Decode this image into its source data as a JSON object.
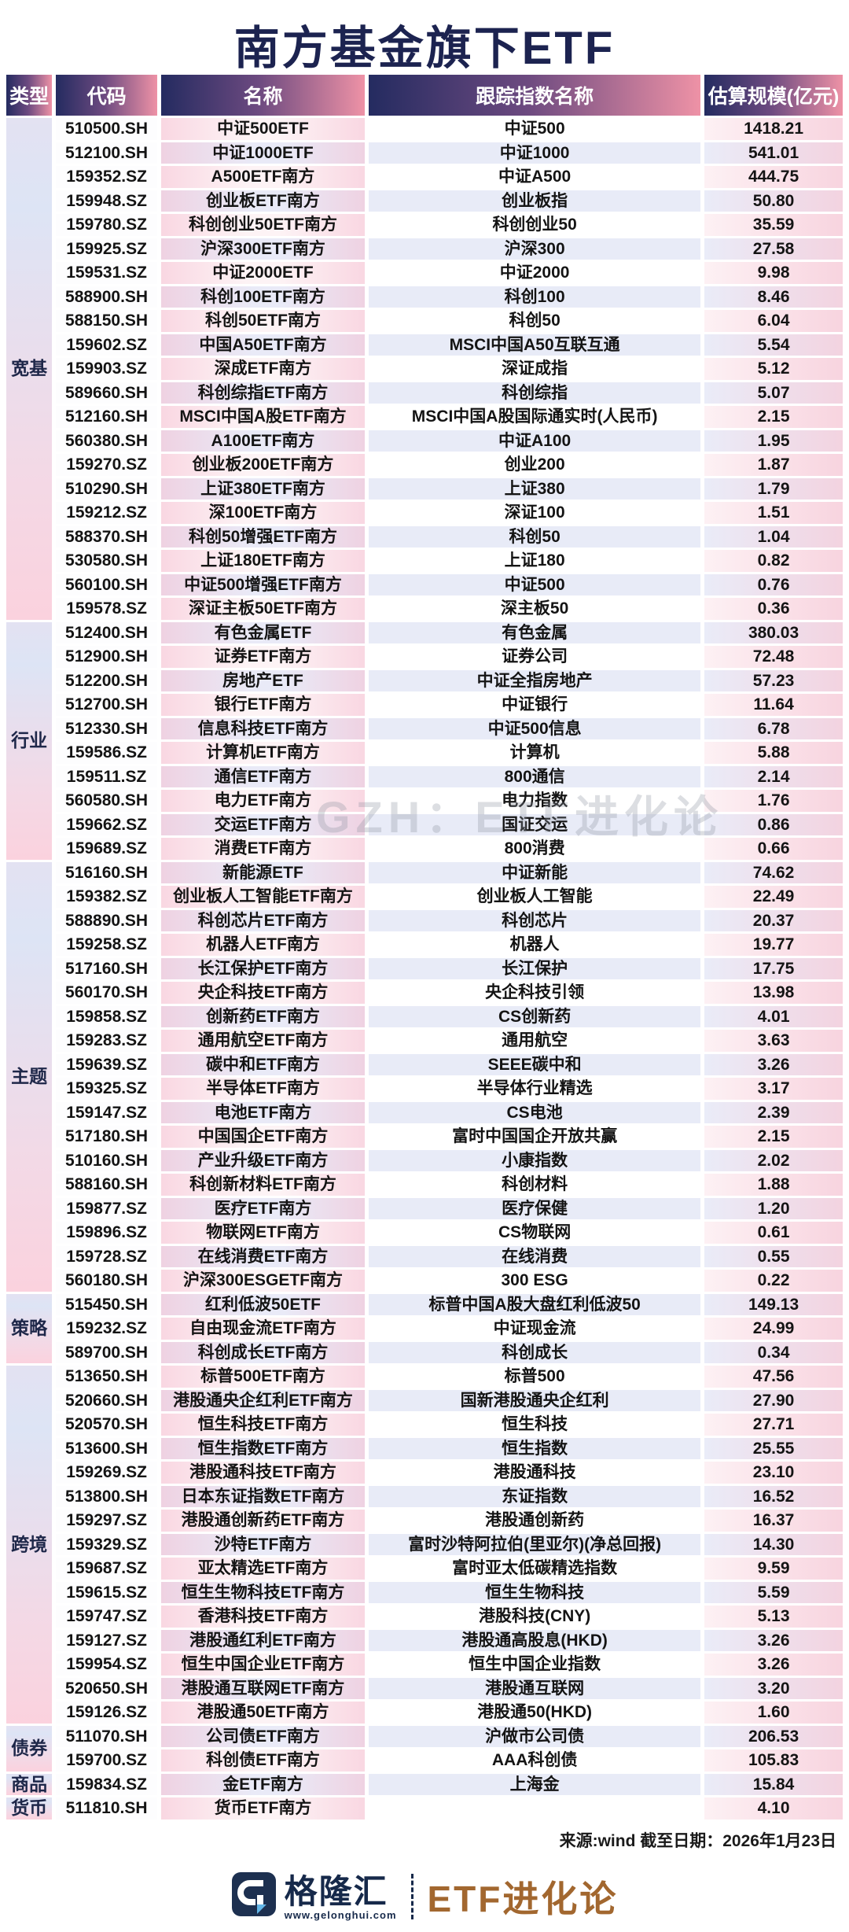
{
  "title": "南方基金旗下ETF",
  "watermark": "GZH：ETF进化论",
  "colors": {
    "title_navy": "#1c2350",
    "header_gradient_left": "#242b60",
    "header_gradient_right": "#ee92a6",
    "row_pink": "#f9d7e2",
    "row_lavender": "#e8ebf7",
    "brand_brown": "#a2672f",
    "logo_navy": "#16294a",
    "logo_blue": "#63b6e8"
  },
  "table": {
    "headers": [
      "类型",
      "代码",
      "名称",
      "跟踪指数名称",
      "估算规模(亿元)"
    ],
    "sections": [
      {
        "type": "宽基",
        "rows": [
          [
            "510500.SH",
            "中证500ETF",
            "中证500",
            "1418.21"
          ],
          [
            "512100.SH",
            "中证1000ETF",
            "中证1000",
            "541.01"
          ],
          [
            "159352.SZ",
            "A500ETF南方",
            "中证A500",
            "444.75"
          ],
          [
            "159948.SZ",
            "创业板ETF南方",
            "创业板指",
            "50.80"
          ],
          [
            "159780.SZ",
            "科创创业50ETF南方",
            "科创创业50",
            "35.59"
          ],
          [
            "159925.SZ",
            "沪深300ETF南方",
            "沪深300",
            "27.58"
          ],
          [
            "159531.SZ",
            "中证2000ETF",
            "中证2000",
            "9.98"
          ],
          [
            "588900.SH",
            "科创100ETF南方",
            "科创100",
            "8.46"
          ],
          [
            "588150.SH",
            "科创50ETF南方",
            "科创50",
            "6.04"
          ],
          [
            "159602.SZ",
            "中国A50ETF南方",
            "MSCI中国A50互联互通",
            "5.54"
          ],
          [
            "159903.SZ",
            "深成ETF南方",
            "深证成指",
            "5.12"
          ],
          [
            "589660.SH",
            "科创综指ETF南方",
            "科创综指",
            "5.07"
          ],
          [
            "512160.SH",
            "MSCI中国A股ETF南方",
            "MSCI中国A股国际通实时(人民币)",
            "2.15"
          ],
          [
            "560380.SH",
            "A100ETF南方",
            "中证A100",
            "1.95"
          ],
          [
            "159270.SZ",
            "创业板200ETF南方",
            "创业200",
            "1.87"
          ],
          [
            "510290.SH",
            "上证380ETF南方",
            "上证380",
            "1.79"
          ],
          [
            "159212.SZ",
            "深100ETF南方",
            "深证100",
            "1.51"
          ],
          [
            "588370.SH",
            "科创50增强ETF南方",
            "科创50",
            "1.04"
          ],
          [
            "530580.SH",
            "上证180ETF南方",
            "上证180",
            "0.82"
          ],
          [
            "560100.SH",
            "中证500增强ETF南方",
            "中证500",
            "0.76"
          ],
          [
            "159578.SZ",
            "深证主板50ETF南方",
            "深主板50",
            "0.36"
          ]
        ]
      },
      {
        "type": "行业",
        "rows": [
          [
            "512400.SH",
            "有色金属ETF",
            "有色金属",
            "380.03"
          ],
          [
            "512900.SH",
            "证券ETF南方",
            "证券公司",
            "72.48"
          ],
          [
            "512200.SH",
            "房地产ETF",
            "中证全指房地产",
            "57.23"
          ],
          [
            "512700.SH",
            "银行ETF南方",
            "中证银行",
            "11.64"
          ],
          [
            "512330.SH",
            "信息科技ETF南方",
            "中证500信息",
            "6.78"
          ],
          [
            "159586.SZ",
            "计算机ETF南方",
            "计算机",
            "5.88"
          ],
          [
            "159511.SZ",
            "通信ETF南方",
            "800通信",
            "2.14"
          ],
          [
            "560580.SH",
            "电力ETF南方",
            "电力指数",
            "1.76"
          ],
          [
            "159662.SZ",
            "交运ETF南方",
            "国证交运",
            "0.86"
          ],
          [
            "159689.SZ",
            "消费ETF南方",
            "800消费",
            "0.66"
          ]
        ]
      },
      {
        "type": "主题",
        "rows": [
          [
            "516160.SH",
            "新能源ETF",
            "中证新能",
            "74.62"
          ],
          [
            "159382.SZ",
            "创业板人工智能ETF南方",
            "创业板人工智能",
            "22.49"
          ],
          [
            "588890.SH",
            "科创芯片ETF南方",
            "科创芯片",
            "20.37"
          ],
          [
            "159258.SZ",
            "机器人ETF南方",
            "机器人",
            "19.77"
          ],
          [
            "517160.SH",
            "长江保护ETF南方",
            "长江保护",
            "17.75"
          ],
          [
            "560170.SH",
            "央企科技ETF南方",
            "央企科技引领",
            "13.98"
          ],
          [
            "159858.SZ",
            "创新药ETF南方",
            "CS创新药",
            "4.01"
          ],
          [
            "159283.SZ",
            "通用航空ETF南方",
            "通用航空",
            "3.63"
          ],
          [
            "159639.SZ",
            "碳中和ETF南方",
            "SEEE碳中和",
            "3.26"
          ],
          [
            "159325.SZ",
            "半导体ETF南方",
            "半导体行业精选",
            "3.17"
          ],
          [
            "159147.SZ",
            "电池ETF南方",
            "CS电池",
            "2.39"
          ],
          [
            "517180.SH",
            "中国国企ETF南方",
            "富时中国国企开放共赢",
            "2.15"
          ],
          [
            "510160.SH",
            "产业升级ETF南方",
            "小康指数",
            "2.02"
          ],
          [
            "588160.SH",
            "科创新材料ETF南方",
            "科创材料",
            "1.88"
          ],
          [
            "159877.SZ",
            "医疗ETF南方",
            "医疗保健",
            "1.20"
          ],
          [
            "159896.SZ",
            "物联网ETF南方",
            "CS物联网",
            "0.61"
          ],
          [
            "159728.SZ",
            "在线消费ETF南方",
            "在线消费",
            "0.55"
          ],
          [
            "560180.SH",
            "沪深300ESGETF南方",
            "300 ESG",
            "0.22"
          ]
        ]
      },
      {
        "type": "策略",
        "rows": [
          [
            "515450.SH",
            "红利低波50ETF",
            "标普中国A股大盘红利低波50",
            "149.13"
          ],
          [
            "159232.SZ",
            "自由现金流ETF南方",
            "中证现金流",
            "24.99"
          ],
          [
            "589700.SH",
            "科创成长ETF南方",
            "科创成长",
            "0.34"
          ]
        ]
      },
      {
        "type": "跨境",
        "rows": [
          [
            "513650.SH",
            "标普500ETF南方",
            "标普500",
            "47.56"
          ],
          [
            "520660.SH",
            "港股通央企红利ETF南方",
            "国新港股通央企红利",
            "27.90"
          ],
          [
            "520570.SH",
            "恒生科技ETF南方",
            "恒生科技",
            "27.71"
          ],
          [
            "513600.SH",
            "恒生指数ETF南方",
            "恒生指数",
            "25.55"
          ],
          [
            "159269.SZ",
            "港股通科技ETF南方",
            "港股通科技",
            "23.10"
          ],
          [
            "513800.SH",
            "日本东证指数ETF南方",
            "东证指数",
            "16.52"
          ],
          [
            "159297.SZ",
            "港股通创新药ETF南方",
            "港股通创新药",
            "16.37"
          ],
          [
            "159329.SZ",
            "沙特ETF南方",
            "富时沙特阿拉伯(里亚尔)(净总回报)",
            "14.30"
          ],
          [
            "159687.SZ",
            "亚太精选ETF南方",
            "富时亚太低碳精选指数",
            "9.59"
          ],
          [
            "159615.SZ",
            "恒生生物科技ETF南方",
            "恒生生物科技",
            "5.59"
          ],
          [
            "159747.SZ",
            "香港科技ETF南方",
            "港股科技(CNY)",
            "5.13"
          ],
          [
            "159127.SZ",
            "港股通红利ETF南方",
            "港股通高股息(HKD)",
            "3.26"
          ],
          [
            "159954.SZ",
            "恒生中国企业ETF南方",
            "恒生中国企业指数",
            "3.26"
          ],
          [
            "520650.SH",
            "港股通互联网ETF南方",
            "港股通互联网",
            "3.20"
          ],
          [
            "159126.SZ",
            "港股通50ETF南方",
            "港股通50(HKD)",
            "1.60"
          ]
        ]
      },
      {
        "type": "债券",
        "rows": [
          [
            "511070.SH",
            "公司债ETF南方",
            "沪做市公司债",
            "206.53"
          ],
          [
            "159700.SZ",
            "科创债ETF南方",
            "AAA科创债",
            "105.83"
          ]
        ]
      },
      {
        "type": "商品",
        "rows": [
          [
            "159834.SZ",
            "金ETF南方",
            "上海金",
            "15.84"
          ]
        ]
      },
      {
        "type": "货币",
        "rows": [
          [
            "511810.SH",
            "货币ETF南方",
            "",
            "4.10"
          ]
        ]
      }
    ]
  },
  "footer": {
    "source": "来源:wind 截至日期：2026年1月23日",
    "logo_icon": "gelonghui-g-icon",
    "logo_name": "格隆汇",
    "logo_url": "www.gelonghui.com",
    "brand": "ETF进化论"
  }
}
